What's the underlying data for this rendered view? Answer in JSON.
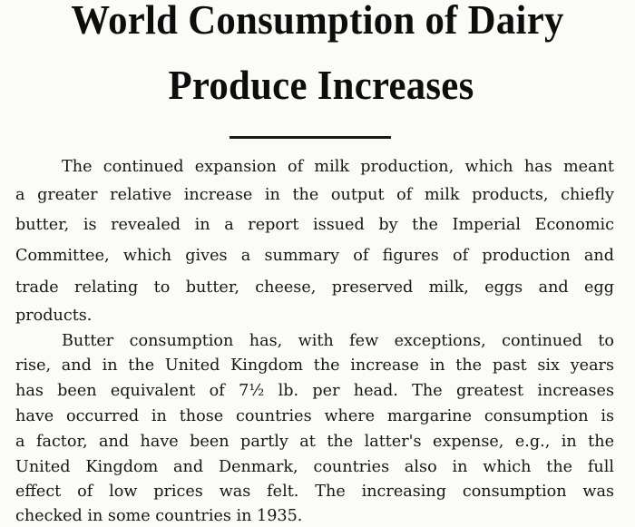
{
  "article": {
    "title_line1": "World Consumption of Dairy",
    "title_line2": "Produce Increases",
    "paragraph1": [
      "The continued expansion of milk production, which has meant",
      "a greater relative increase in the output of milk products, chiefly",
      "butter, is revealed in a report issued by the Imperial Economic",
      "Committee, which gives a summary of figures of production and",
      "trade relating to butter, cheese, preserved milk, eggs and egg",
      "products."
    ],
    "paragraph2": [
      "Butter consumption has, with few exceptions, continued to",
      "rise, and in the United Kingdom the increase in the past six years",
      "has been equivalent of 7½ lb. per head.  The greatest increases",
      "have occurred in those countries where margarine consumption is",
      "a factor, and have been partly at the latter's expense, e.g., in the",
      "United Kingdom and Denmark, countries also in which the full",
      "effect of low prices was felt.  The increasing consumption was",
      "checked in some countries in 1935."
    ]
  }
}
